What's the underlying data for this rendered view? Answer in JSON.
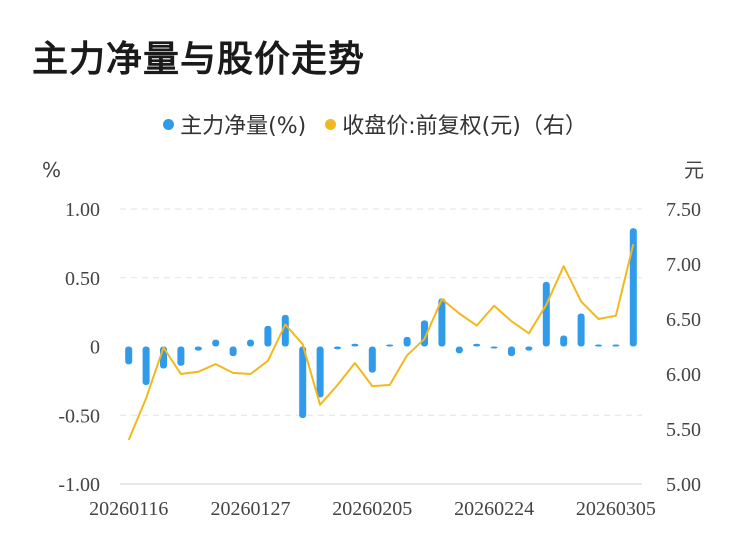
{
  "title": "主力净量与股价走势",
  "colors": {
    "bar": "#2f9bea",
    "line": "#f3b81c",
    "grid": "#e2e2e2"
  },
  "chart_data": {
    "type": "bar+line",
    "legend": [
      {
        "name": "主力净量(%)",
        "color": "#2f9bea"
      },
      {
        "name": "收盘价:前复权(元)（右）",
        "color": "#f3b81c"
      }
    ],
    "left_axis": {
      "unit": "%",
      "ticks": [
        "1.00",
        "0.50",
        "0",
        "-0.50",
        "-1.00"
      ],
      "range": [
        -1.0,
        1.0
      ]
    },
    "right_axis": {
      "unit": "元",
      "ticks": [
        "7.50",
        "7.00",
        "6.50",
        "6.00",
        "5.50",
        "5.00"
      ],
      "range": [
        5.0,
        7.5
      ]
    },
    "x_tick_labels": [
      "20260116",
      "20260127",
      "20260205",
      "20260224",
      "20260305"
    ],
    "x_tick_indices": [
      0,
      7,
      14,
      21,
      28
    ],
    "series": [
      {
        "name": "主力净量(%)",
        "kind": "bar",
        "values": [
          -0.13,
          -0.28,
          -0.16,
          -0.14,
          -0.03,
          0.05,
          -0.07,
          0.05,
          0.15,
          0.23,
          -0.52,
          -0.37,
          -0.02,
          0.02,
          -0.19,
          0.01,
          0.07,
          0.19,
          0.35,
          -0.05,
          0.02,
          -0.01,
          -0.07,
          -0.03,
          0.47,
          0.08,
          0.24,
          0.0,
          0.0,
          0.86
        ]
      },
      {
        "name": "收盘价:前复权(元)（右）",
        "kind": "line",
        "values": [
          5.4,
          5.78,
          6.24,
          6.0,
          6.02,
          6.09,
          6.01,
          6.0,
          6.12,
          6.45,
          6.27,
          5.72,
          5.9,
          6.1,
          5.89,
          5.9,
          6.17,
          6.32,
          6.68,
          6.55,
          6.44,
          6.62,
          6.48,
          6.37,
          6.63,
          6.98,
          6.66,
          6.5,
          6.53,
          7.18
        ]
      }
    ]
  }
}
